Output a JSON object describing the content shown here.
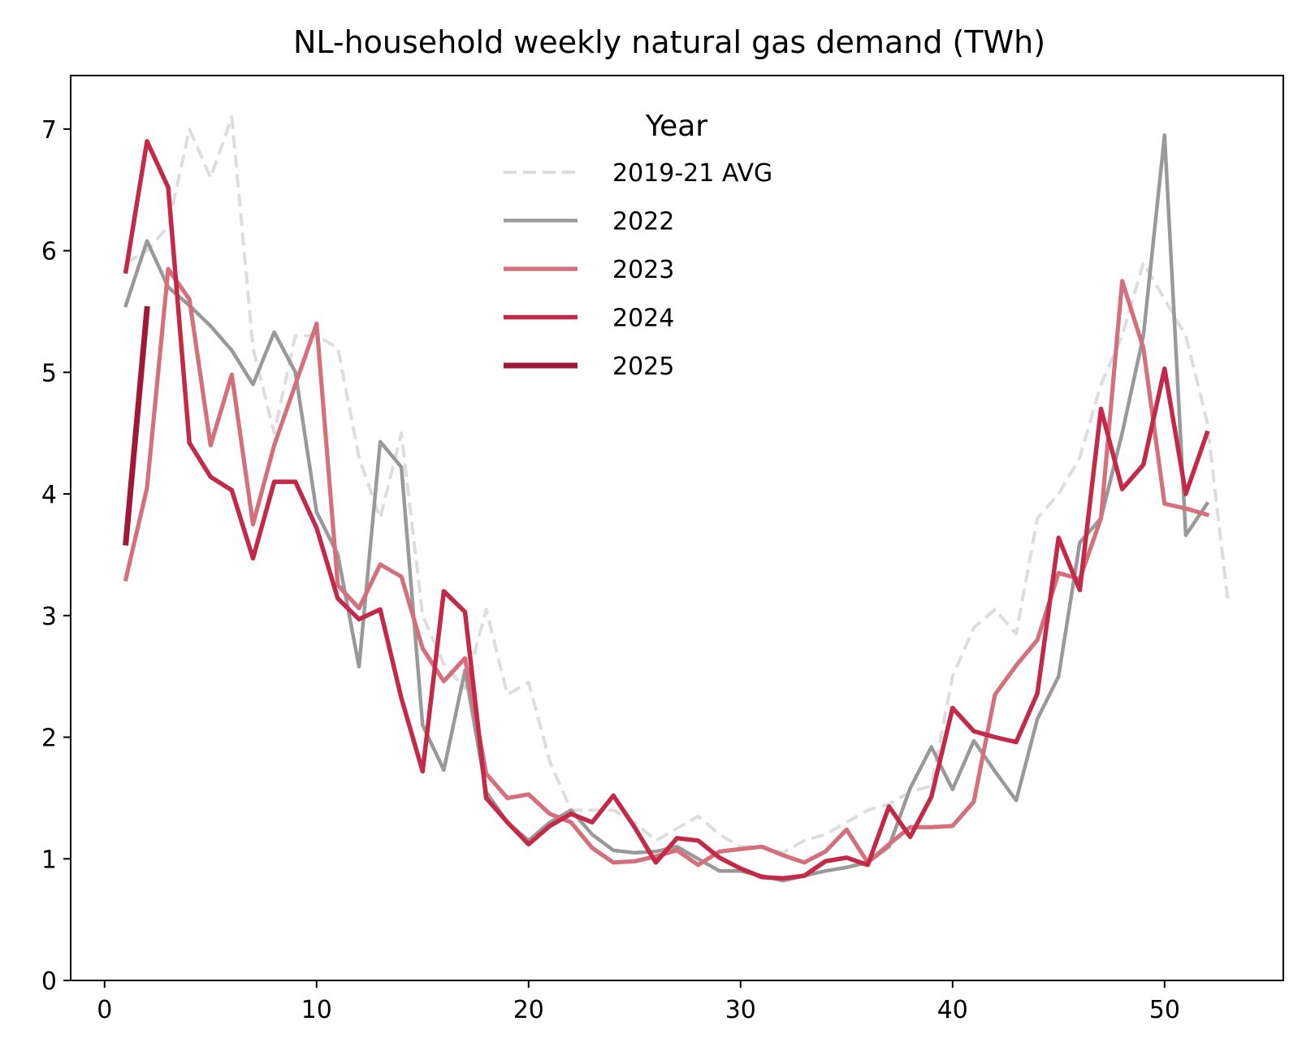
{
  "chart_data": {
    "type": "line",
    "title": "NL-household weekly natural gas demand (TWh)",
    "xlabel": "",
    "ylabel": "",
    "xlim": [
      -1.6,
      55.6
    ],
    "ylim": [
      0,
      7.44
    ],
    "xticks": [
      0,
      10,
      20,
      30,
      40,
      50
    ],
    "yticks": [
      0,
      1,
      2,
      3,
      4,
      5,
      6,
      7
    ],
    "grid": false,
    "legend": {
      "title": "Year",
      "placement": "top-center"
    },
    "series": [
      {
        "name": "2019-21 AVG",
        "color": "#dddddd",
        "dash": true,
        "x": [
          1,
          2,
          3,
          4,
          5,
          6,
          7,
          8,
          9,
          10,
          11,
          12,
          13,
          14,
          15,
          16,
          17,
          18,
          19,
          20,
          21,
          22,
          23,
          24,
          25,
          26,
          27,
          28,
          29,
          30,
          31,
          32,
          33,
          34,
          35,
          36,
          37,
          38,
          39,
          40,
          41,
          42,
          43,
          44,
          45,
          46,
          47,
          48,
          49,
          50,
          51,
          52,
          53
        ],
        "values": [
          5.9,
          6.0,
          6.2,
          7.0,
          6.6,
          7.1,
          5.2,
          4.5,
          5.3,
          5.3,
          5.2,
          4.3,
          3.8,
          4.5,
          3.0,
          2.6,
          2.4,
          3.05,
          2.35,
          2.45,
          1.8,
          1.4,
          1.4,
          1.4,
          1.3,
          1.15,
          1.25,
          1.35,
          1.2,
          1.1,
          1.1,
          1.05,
          1.15,
          1.2,
          1.3,
          1.4,
          1.45,
          1.55,
          1.6,
          2.5,
          2.9,
          3.05,
          2.85,
          3.8,
          4.0,
          4.3,
          4.9,
          5.3,
          5.9,
          5.6,
          5.3,
          4.6,
          3.1
        ]
      },
      {
        "name": "2022",
        "color": "#999999",
        "dash": false,
        "x": [
          1,
          2,
          3,
          4,
          5,
          6,
          7,
          8,
          9,
          10,
          11,
          12,
          13,
          14,
          15,
          16,
          17,
          18,
          19,
          20,
          21,
          22,
          23,
          24,
          25,
          26,
          27,
          28,
          29,
          30,
          31,
          32,
          33,
          34,
          35,
          36,
          37,
          38,
          39,
          40,
          41,
          42,
          43,
          44,
          45,
          46,
          47,
          48,
          49,
          50,
          51,
          52
        ],
        "values": [
          5.55,
          6.08,
          5.7,
          5.55,
          5.38,
          5.18,
          4.9,
          5.33,
          5.0,
          3.85,
          3.5,
          2.58,
          4.43,
          4.22,
          2.1,
          1.73,
          2.55,
          1.55,
          1.3,
          1.15,
          1.3,
          1.4,
          1.2,
          1.07,
          1.05,
          1.06,
          1.1,
          1.0,
          0.9,
          0.9,
          0.86,
          0.82,
          0.86,
          0.9,
          0.93,
          0.97,
          1.1,
          1.58,
          1.92,
          1.57,
          1.97,
          1.72,
          1.48,
          2.15,
          2.5,
          3.6,
          3.8,
          4.5,
          5.3,
          6.95,
          3.66,
          3.92
        ]
      },
      {
        "name": "2023",
        "color": "#d4707c",
        "dash": false,
        "x": [
          1,
          2,
          3,
          4,
          5,
          6,
          7,
          8,
          9,
          10,
          11,
          12,
          13,
          14,
          15,
          16,
          17,
          18,
          19,
          20,
          21,
          22,
          23,
          24,
          25,
          26,
          27,
          28,
          29,
          30,
          31,
          32,
          33,
          34,
          35,
          36,
          37,
          38,
          39,
          40,
          41,
          42,
          43,
          44,
          45,
          46,
          47,
          48,
          49,
          50,
          51,
          52
        ],
        "values": [
          3.3,
          4.05,
          5.85,
          5.6,
          4.4,
          4.98,
          3.75,
          4.4,
          4.9,
          5.4,
          3.25,
          3.06,
          3.42,
          3.32,
          2.73,
          2.46,
          2.65,
          1.7,
          1.5,
          1.53,
          1.37,
          1.3,
          1.09,
          0.97,
          0.98,
          1.02,
          1.07,
          0.95,
          1.06,
          1.08,
          1.1,
          1.03,
          0.97,
          1.06,
          1.24,
          0.97,
          1.12,
          1.26,
          1.26,
          1.27,
          1.47,
          2.35,
          2.59,
          2.8,
          3.35,
          3.3,
          3.8,
          5.75,
          5.2,
          3.92,
          3.88,
          3.83
        ]
      },
      {
        "name": "2024",
        "color": "#c22a48",
        "dash": false,
        "x": [
          1,
          2,
          3,
          4,
          5,
          6,
          7,
          8,
          9,
          10,
          11,
          12,
          13,
          14,
          15,
          16,
          17,
          18,
          19,
          20,
          21,
          22,
          23,
          24,
          25,
          26,
          27,
          28,
          29,
          30,
          31,
          32,
          33,
          34,
          35,
          36,
          37,
          38,
          39,
          40,
          41,
          42,
          43,
          44,
          45,
          46,
          47,
          48,
          49,
          50,
          51,
          52
        ],
        "values": [
          5.83,
          6.9,
          6.52,
          4.42,
          4.14,
          4.03,
          3.47,
          4.1,
          4.1,
          3.72,
          3.14,
          2.97,
          3.05,
          2.32,
          1.72,
          3.2,
          3.03,
          1.5,
          1.3,
          1.12,
          1.27,
          1.37,
          1.3,
          1.52,
          1.26,
          0.97,
          1.17,
          1.15,
          1.01,
          0.92,
          0.85,
          0.84,
          0.86,
          0.98,
          1.01,
          0.95,
          1.43,
          1.18,
          1.51,
          2.24,
          2.05,
          2.0,
          1.96,
          2.36,
          3.64,
          3.21,
          4.7,
          4.04,
          4.24,
          5.03,
          4.0,
          4.5
        ]
      },
      {
        "name": "2025",
        "color": "#a01838",
        "dash": false,
        "x": [
          1,
          2
        ],
        "values": [
          3.6,
          5.52
        ]
      }
    ]
  }
}
